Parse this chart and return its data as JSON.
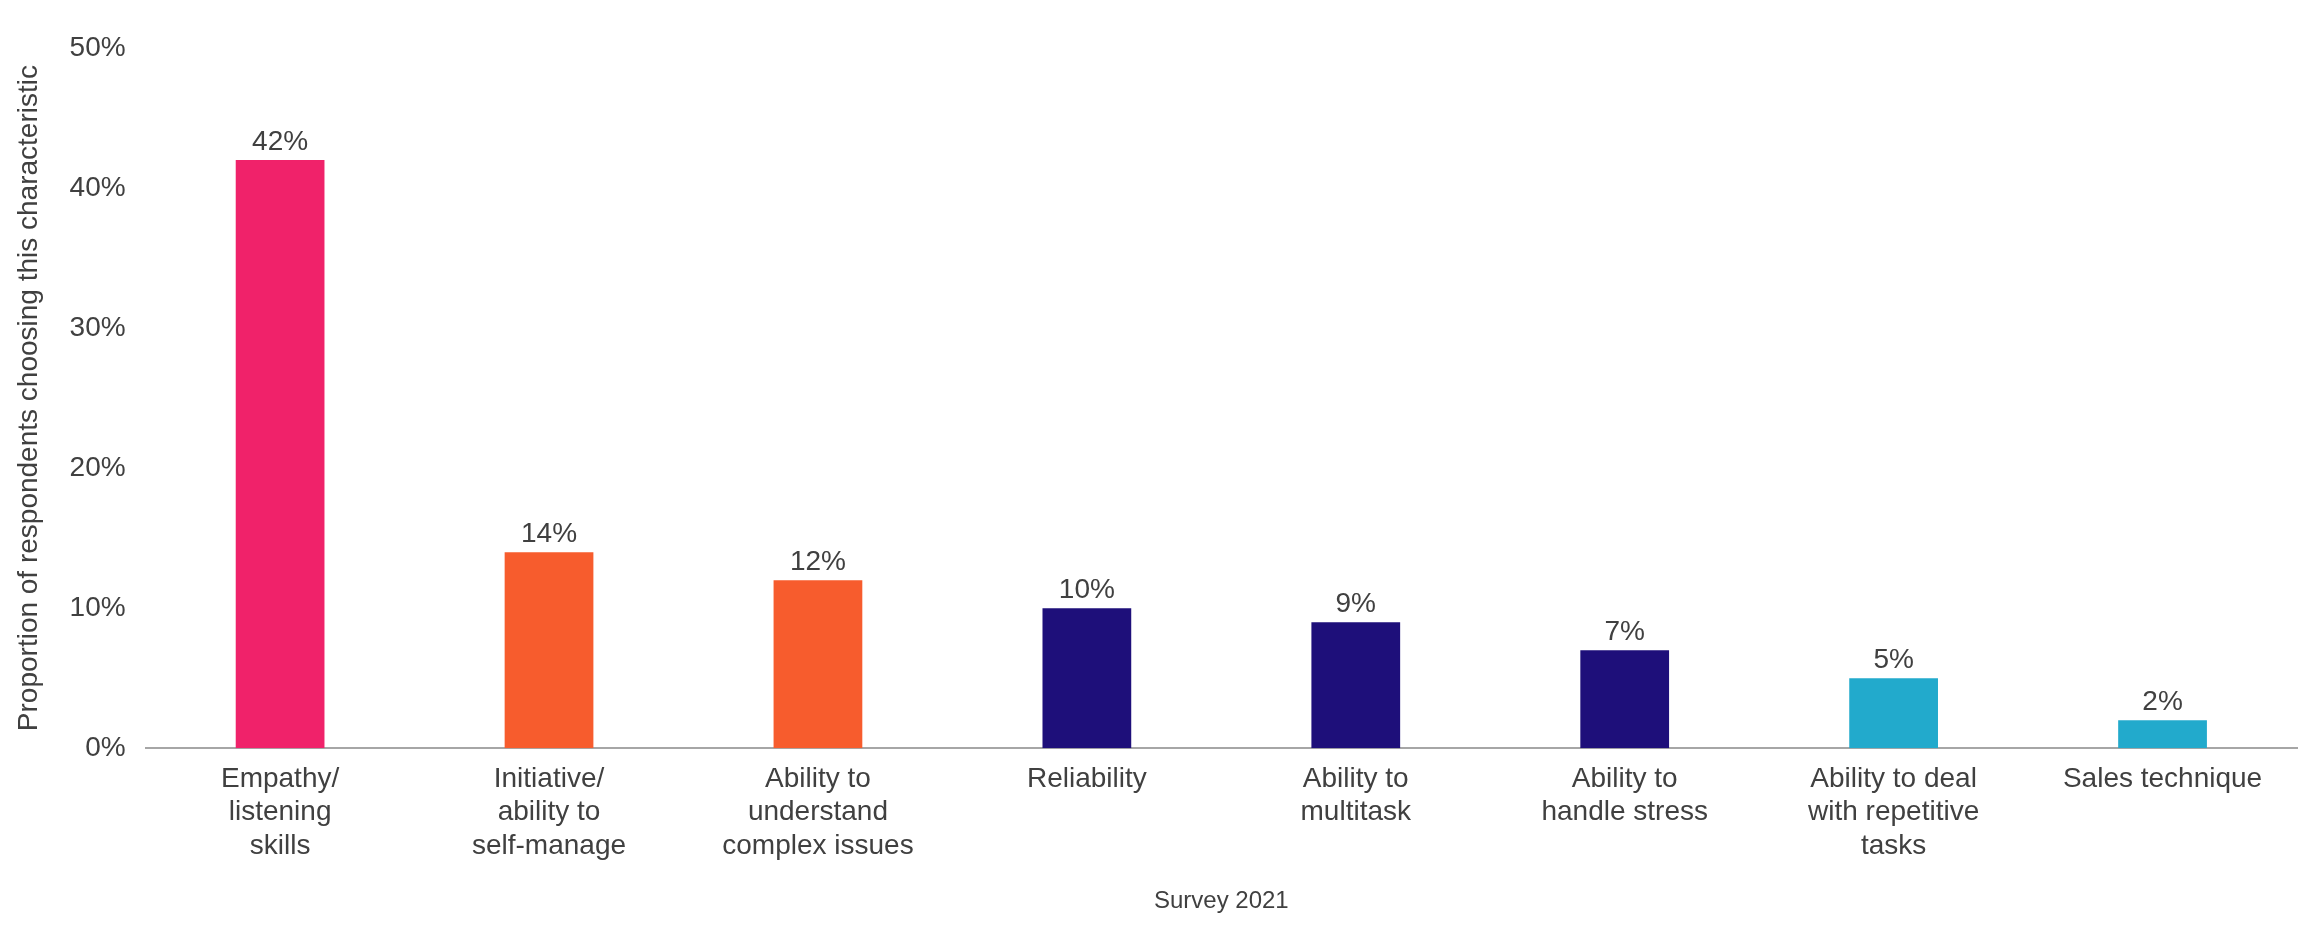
{
  "chart_data": {
    "type": "bar",
    "ylabel": "Proportion of respondents choosing this characteristic",
    "categories": [
      "Empathy/ listening skills",
      "Initiative/ ability to self-manage",
      "Ability to understand complex issues",
      "Reliability",
      "Ability to multitask",
      "Ability to handle stress",
      "Ability to deal with repetitive tasks",
      "Sales technique"
    ],
    "values": [
      42,
      14,
      12,
      10,
      9,
      7,
      5,
      2
    ],
    "colors": [
      "#f0226a",
      "#f75c2d",
      "#f75c2d",
      "#1e0f7a",
      "#1e0f7a",
      "#1e0f7a",
      "#22aacc",
      "#22aacc"
    ],
    "ylim": [
      0,
      50
    ],
    "yticks": [
      {
        "value": 0,
        "label": "0%"
      },
      {
        "value": 10,
        "label": "10%"
      },
      {
        "value": 20,
        "label": "20%"
      },
      {
        "value": 30,
        "label": "30%"
      },
      {
        "value": 40,
        "label": "40%"
      },
      {
        "value": 50,
        "label": "50%"
      }
    ],
    "value_labels": [
      "42%",
      "14%",
      "12%",
      "10%",
      "9%",
      "7%",
      "5%",
      "2%"
    ],
    "grid": false,
    "legend": false,
    "annotations": [
      "Survey 2021"
    ]
  }
}
